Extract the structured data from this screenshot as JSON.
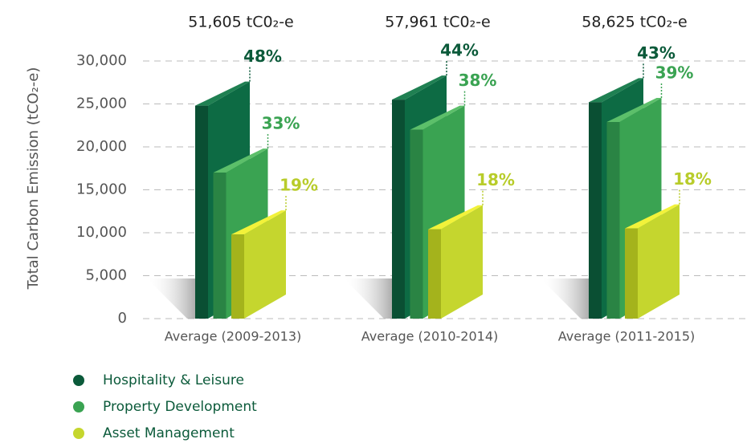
{
  "chart_data": {
    "type": "bar3d",
    "y_label": "Total Carbon Emission (tCO₂-e)",
    "categories": [
      "Average (2009-2013)",
      "Average (2010-2014)",
      "Average (2011-2015)"
    ],
    "totals": [
      "51,605 tC0₂-e",
      "57,961 tC0₂-e",
      "58,625 tC0₂-e"
    ],
    "series": [
      {
        "name": "Hospitality & Leisure",
        "color": "#0b5a3a",
        "values": [
          24800,
          25500,
          25200
        ],
        "share_labels": [
          "48%",
          "44%",
          "43%"
        ]
      },
      {
        "name": "Property Development",
        "color": "#3aa352",
        "values": [
          17000,
          22000,
          22900
        ],
        "share_labels": [
          "33%",
          "38%",
          "39%"
        ]
      },
      {
        "name": "Asset Management",
        "color": "#c5d62e",
        "values": [
          9800,
          10400,
          10500
        ],
        "share_labels": [
          "19%",
          "18%",
          "18%"
        ]
      }
    ],
    "ylim": [
      0,
      30000
    ],
    "yticks": [
      0,
      {
        "value": 5000,
        "label": "5,000"
      },
      {
        "value": 10000,
        "label": "10,000"
      },
      {
        "value": 15000,
        "label": "15,000"
      },
      {
        "value": 20000,
        "label": "20,000"
      },
      {
        "value": 25000,
        "label": "25,000"
      },
      {
        "value": 30000,
        "label": "30,000"
      }
    ],
    "grid": true
  }
}
